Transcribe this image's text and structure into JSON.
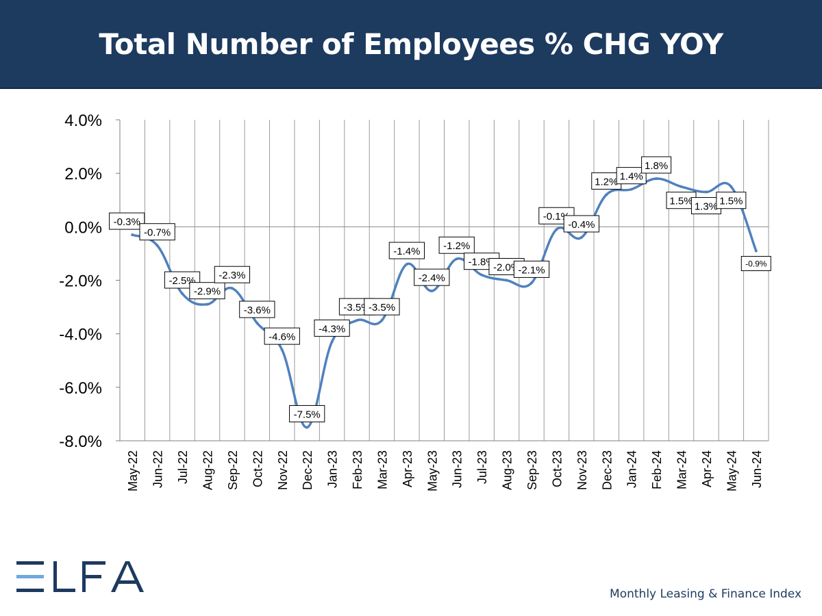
{
  "header": {
    "title": "Total Number of Employees % CHG YOY"
  },
  "colors": {
    "header_bg": "#1d3a5f",
    "line": "#4f81bd",
    "logo_dark": "#1d3a5f",
    "logo_light": "#6fa8dc"
  },
  "chart_data": {
    "type": "line",
    "title": "Total Number of Employees % CHG YOY",
    "xlabel": "",
    "ylabel": "",
    "ylim": [
      -8.0,
      4.0
    ],
    "yticks": [
      "4.0%",
      "2.0%",
      "0.0%",
      "-2.0%",
      "-4.0%",
      "-6.0%",
      "-8.0%"
    ],
    "grid": "vertical",
    "categories": [
      "May-22",
      "Jun-22",
      "Jul-22",
      "Aug-22",
      "Sep-22",
      "Oct-22",
      "Nov-22",
      "Dec-22",
      "Jan-23",
      "Feb-23",
      "Mar-23",
      "Apr-23",
      "May-23",
      "Jun-23",
      "Jul-23",
      "Aug-23",
      "Sep-23",
      "Oct-23",
      "Nov-23",
      "Dec-23",
      "Jan-24",
      "Feb-24",
      "Mar-24",
      "Apr-24",
      "May-24",
      "Jun-24"
    ],
    "series": [
      {
        "values": [
          -0.3,
          -0.7,
          -2.5,
          -2.9,
          -2.3,
          -3.6,
          -4.6,
          -7.5,
          -4.3,
          -3.5,
          -3.5,
          -1.4,
          -2.4,
          -1.2,
          -1.8,
          -2.0,
          -2.1,
          -0.1,
          -0.4,
          1.2,
          1.4,
          1.8,
          1.5,
          1.3,
          1.5,
          -0.9
        ],
        "labels": [
          "-0.3%",
          "-0.7%",
          "-2.5%",
          "-2.9%",
          "-2.3%",
          "-3.6%",
          "-4.6%",
          "-7.5%",
          "-4.3%",
          "-3.5%",
          "-3.5%",
          "-1.4%",
          "-2.4%",
          "-1.2%",
          "-1.8%",
          "-2.0%",
          "-2.1%",
          "-0.1%",
          "-0.4%",
          "1.2%",
          "1.4%",
          "1.8%",
          "1.5%",
          "1.3%",
          "1.5%",
          "-0.9%"
        ]
      }
    ]
  },
  "logo": {
    "text": "ELFA"
  },
  "footer": {
    "text": "Monthly Leasing & Finance Index"
  }
}
